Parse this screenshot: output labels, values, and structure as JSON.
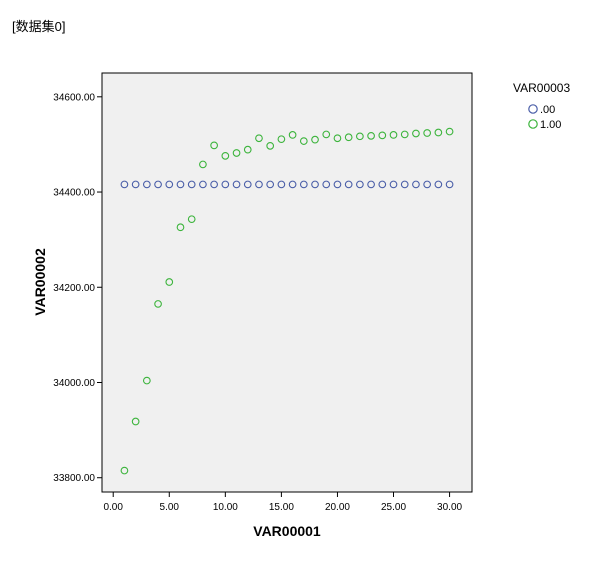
{
  "header": {
    "dataset_label": "[数据集0]"
  },
  "chart_data": {
    "type": "scatter",
    "xlabel": "VAR00001",
    "ylabel": "VAR00002",
    "xlim": [
      -1,
      32
    ],
    "ylim": [
      33770,
      34650
    ],
    "x_ticks": [
      0,
      5,
      10,
      15,
      20,
      25,
      30
    ],
    "x_tick_labels": [
      "0.00",
      "5.00",
      "10.00",
      "15.00",
      "20.00",
      "25.00",
      "30.00"
    ],
    "y_ticks": [
      33800,
      34000,
      34200,
      34400,
      34600
    ],
    "y_tick_labels": [
      "33800.00",
      "34000.00",
      "34200.00",
      "34400.00",
      "34600.00"
    ],
    "grid": false,
    "legend": {
      "title": "VAR00003",
      "position": "top-right"
    },
    "series": [
      {
        "name": ".00",
        "color": "#4a5ea8",
        "x": [
          1,
          2,
          3,
          4,
          5,
          6,
          7,
          8,
          9,
          10,
          11,
          12,
          13,
          14,
          15,
          16,
          17,
          18,
          19,
          20,
          21,
          22,
          23,
          24,
          25,
          26,
          27,
          28,
          29,
          30
        ],
        "y": [
          34416,
          34416,
          34416,
          34416,
          34416,
          34416,
          34416,
          34416,
          34416,
          34416,
          34416,
          34416,
          34416,
          34416,
          34416,
          34416,
          34416,
          34416,
          34416,
          34416,
          34416,
          34416,
          34416,
          34416,
          34416,
          34416,
          34416,
          34416,
          34416,
          34416
        ]
      },
      {
        "name": "1.00",
        "color": "#3cb43c",
        "x": [
          1,
          2,
          3,
          4,
          5,
          6,
          7,
          8,
          9,
          10,
          11,
          12,
          13,
          14,
          15,
          16,
          17,
          18,
          19,
          20,
          21,
          22,
          23,
          24,
          25,
          26,
          27,
          28,
          29,
          30
        ],
        "y": [
          33815,
          33918,
          34004,
          34165,
          34211,
          34326,
          34343,
          34458,
          34498,
          34476,
          34482,
          34489,
          34513,
          34497,
          34511,
          34520,
          34507,
          34510,
          34521,
          34513,
          34515,
          34517,
          34518,
          34519,
          34520,
          34521,
          34523,
          34524,
          34525,
          34527
        ]
      }
    ]
  }
}
